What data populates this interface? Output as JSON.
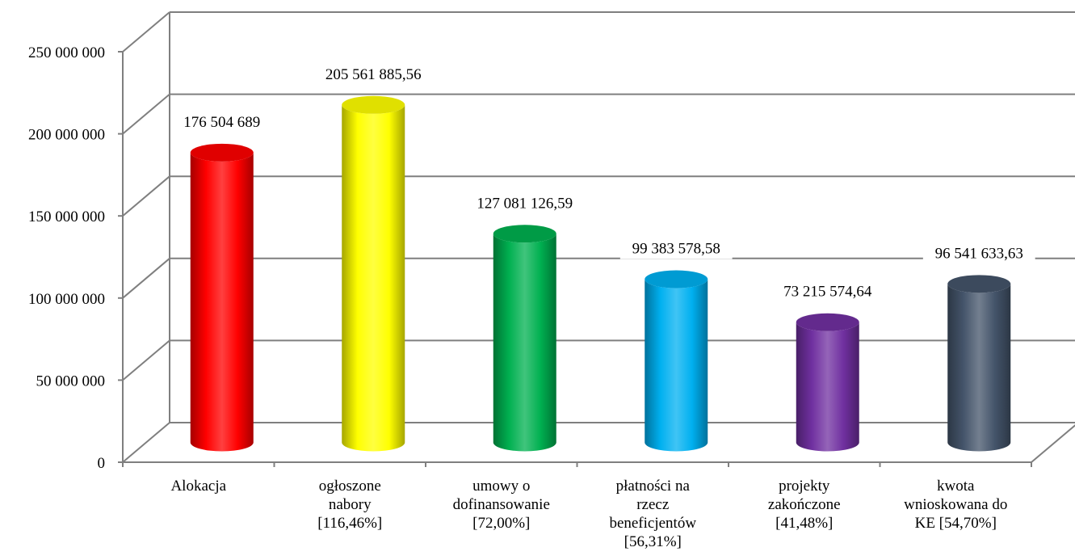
{
  "chart_data": {
    "type": "bar",
    "title": "",
    "xlabel": "",
    "ylabel": "",
    "ylim": [
      0,
      250000000
    ],
    "y_ticks": [
      0,
      50000000,
      100000000,
      150000000,
      200000000,
      250000000
    ],
    "y_tick_labels": [
      "0",
      "50 000 000",
      "100 000 000",
      "150 000 000",
      "200 000 000",
      "250 000 000"
    ],
    "grid": true,
    "legend": "none",
    "categories": [
      [
        "Alokacja"
      ],
      [
        "ogłoszone",
        "nabory",
        "[116,46%]"
      ],
      [
        "umowy o",
        "dofinansowanie",
        "[72,00%]"
      ],
      [
        "płatności na",
        "rzecz",
        "beneficjentów",
        "[56,31%]"
      ],
      [
        "projekty",
        "zakończone",
        "[41,48%]"
      ],
      [
        "kwota",
        "wnioskowana do",
        "KE [54,70%]"
      ]
    ],
    "values": [
      176504689,
      205561885.56,
      127081126.59,
      99383578.58,
      73215574.64,
      96541633.63
    ],
    "data_labels": [
      "176 504 689",
      "205 561 885,56",
      "127 081 126,59",
      "99 383 578,58",
      "73 215 574,64",
      "96 541 633,63"
    ],
    "colors": [
      "#ff0000",
      "#ffff00",
      "#00b050",
      "#00b0f0",
      "#7030a0",
      "#44546a"
    ],
    "grid_color": "#7f7f7f"
  }
}
